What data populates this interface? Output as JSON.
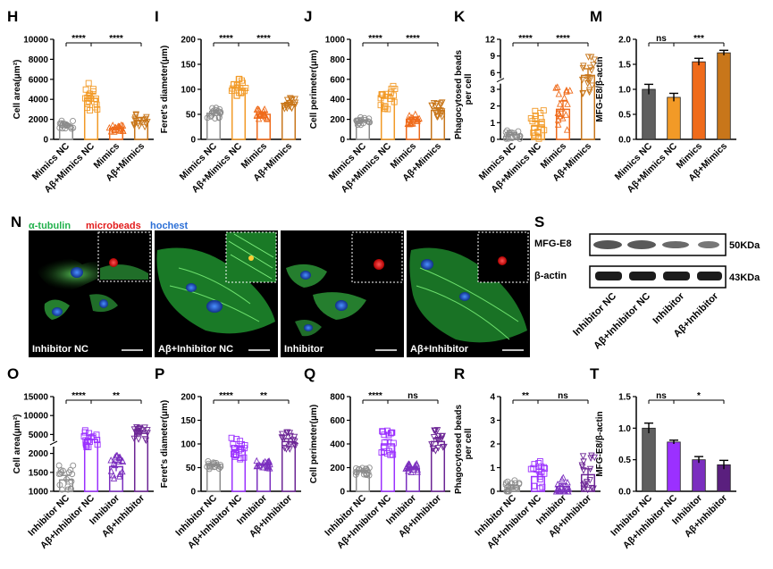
{
  "figure": {
    "microscopy": {
      "letter": "N",
      "stain_labels": [
        {
          "text": "α-tubulin",
          "color": "#22b14c"
        },
        {
          "text": "microbeads",
          "color": "#e21b1b"
        },
        {
          "text": "hochest",
          "color": "#2b6fd6"
        }
      ],
      "panels": [
        {
          "label": "Inhibitor NC"
        },
        {
          "label": "Aβ+Inhibitor  NC"
        },
        {
          "label": "Inhibitor"
        },
        {
          "label": "Aβ+Inhibitor"
        }
      ]
    },
    "western_blot": {
      "letter": "S",
      "bands": [
        {
          "name": "MFG-E8",
          "size": "50KDa"
        },
        {
          "name": "β-actin",
          "size": "43KDa"
        }
      ],
      "lanes": [
        "Inhibitor NC",
        "Aβ+Inhibitor NC",
        "Inhibitor",
        "Aβ+Inhibitor"
      ]
    }
  },
  "chart_data": [
    {
      "letter": "H",
      "type": "bar",
      "ylabel": "Cell area(μm²)",
      "ylim": [
        0,
        10000
      ],
      "yticks": [
        0,
        2000,
        4000,
        6000,
        8000,
        10000
      ],
      "categories": [
        "Mimics NC",
        "Aβ+Mimics NC",
        "Mimics",
        "Aβ+Mimics"
      ],
      "values": [
        1400,
        4100,
        1100,
        1900
      ],
      "errors": [
        150,
        500,
        120,
        250
      ],
      "colors": [
        "#8c8c8c",
        "#f29a27",
        "#ef6b1b",
        "#c8761a"
      ],
      "markers": [
        "circle",
        "square",
        "triangle",
        "triangle-down"
      ],
      "annotations": [
        {
          "from": 0,
          "to": 1,
          "text": "****"
        },
        {
          "from": 1,
          "to": 3,
          "text": "****"
        }
      ]
    },
    {
      "letter": "I",
      "type": "bar",
      "ylabel": "Feret's diameter(μm)",
      "ylim": [
        0,
        200
      ],
      "yticks": [
        0,
        50,
        100,
        150,
        200
      ],
      "categories": [
        "Mimics NC",
        "Aβ+Mimics NC",
        "Mimics",
        "Aβ+Mimics"
      ],
      "values": [
        52,
        102,
        50,
        70
      ],
      "errors": [
        4,
        6,
        4,
        4
      ],
      "colors": [
        "#8c8c8c",
        "#f29a27",
        "#ef6b1b",
        "#c8761a"
      ],
      "markers": [
        "circle",
        "square",
        "triangle",
        "triangle-down"
      ],
      "annotations": [
        {
          "from": 0,
          "to": 1,
          "text": "****"
        },
        {
          "from": 1,
          "to": 3,
          "text": "****"
        }
      ]
    },
    {
      "letter": "J",
      "type": "bar",
      "ylabel": "Cell perimeter(μm)",
      "ylim": [
        0,
        1000
      ],
      "yticks": [
        0,
        200,
        400,
        600,
        800,
        1000
      ],
      "categories": [
        "Mimics NC",
        "Aβ+Mimics NC",
        "Mimics",
        "Aβ+Mimics"
      ],
      "values": [
        180,
        410,
        200,
        290
      ],
      "errors": [
        15,
        40,
        20,
        25
      ],
      "colors": [
        "#8c8c8c",
        "#f29a27",
        "#ef6b1b",
        "#c8761a"
      ],
      "markers": [
        "circle",
        "square",
        "triangle",
        "triangle-down"
      ],
      "annotations": [
        {
          "from": 0,
          "to": 1,
          "text": "****"
        },
        {
          "from": 1,
          "to": 3,
          "text": "****"
        }
      ]
    },
    {
      "letter": "K",
      "type": "bar",
      "ylabel": "Phagocytosed beads per cell",
      "ylim": [
        0,
        14
      ],
      "yticks": [
        0,
        1,
        2,
        3,
        6,
        9,
        12
      ],
      "axis_break": "3 to 4",
      "categories": [
        "Mimics NC",
        "Aβ+Mimics NC",
        "Mimics",
        "Aβ+Mimics"
      ],
      "values": [
        0.3,
        0.8,
        1.8,
        5.5
      ],
      "errors": [
        0.1,
        0.3,
        0.5,
        1.2
      ],
      "colors": [
        "#8c8c8c",
        "#f29a27",
        "#ef6b1b",
        "#c8761a"
      ],
      "markers": [
        "circle",
        "square",
        "triangle",
        "triangle-down"
      ],
      "annotations": [
        {
          "from": 0,
          "to": 1,
          "text": "****"
        },
        {
          "from": 1,
          "to": 3,
          "text": "****"
        }
      ]
    },
    {
      "letter": "M",
      "type": "bar",
      "ylabel": "MFG-E8/β-actin",
      "ylim": [
        0,
        2.0
      ],
      "yticks": [
        "0.0",
        "0.5",
        "1.0",
        "1.5",
        "2.0"
      ],
      "categories": [
        "Mimics NC",
        "Aβ+Mimics NC",
        "Mimics",
        "Aβ+Mimics"
      ],
      "values": [
        1.0,
        0.84,
        1.55,
        1.73
      ],
      "errors": [
        0.1,
        0.08,
        0.07,
        0.05
      ],
      "colors": [
        "#5f5f5f",
        "#f29a27",
        "#ef6b1b",
        "#c8761a"
      ],
      "solid": true,
      "annotations": [
        {
          "from": 0,
          "to": 1,
          "text": "ns"
        },
        {
          "from": 1,
          "to": 3,
          "text": "***"
        }
      ]
    },
    {
      "letter": "O",
      "type": "bar",
      "ylabel": "Cell area(μm²)",
      "ylim": [
        1000,
        15000
      ],
      "yticks": [
        1000,
        1500,
        2000,
        5000,
        10000,
        15000
      ],
      "axis_break": "2000 to 2500",
      "categories": [
        "Inhibitor NC",
        "Aβ+Inhibitor NC",
        "Inhibitor",
        "Aβ+Inhibitor"
      ],
      "values": [
        1300,
        4200,
        1650,
        5300
      ],
      "errors": [
        120,
        600,
        120,
        500
      ],
      "colors": [
        "#8c8c8c",
        "#9b30ff",
        "#7b2fbf",
        "#6b2494"
      ],
      "markers": [
        "circle",
        "square",
        "triangle",
        "triangle-down"
      ],
      "annotations": [
        {
          "from": 0,
          "to": 1,
          "text": "****"
        },
        {
          "from": 1,
          "to": 3,
          "text": "**"
        }
      ]
    },
    {
      "letter": "P",
      "type": "bar",
      "ylabel": "Feret's diameter(μm)",
      "ylim": [
        0,
        200
      ],
      "yticks": [
        0,
        50,
        100,
        150,
        200
      ],
      "categories": [
        "Inhibitor NC",
        "Aβ+Inhibitor NC",
        "Inhibitor",
        "Aβ+Inhibitor"
      ],
      "values": [
        55,
        88,
        55,
        105
      ],
      "errors": [
        3,
        8,
        3,
        6
      ],
      "colors": [
        "#8c8c8c",
        "#9b30ff",
        "#7b2fbf",
        "#6b2494"
      ],
      "markers": [
        "circle",
        "square",
        "triangle",
        "triangle-down"
      ],
      "annotations": [
        {
          "from": 0,
          "to": 1,
          "text": "****"
        },
        {
          "from": 1,
          "to": 3,
          "text": "**"
        }
      ]
    },
    {
      "letter": "Q",
      "type": "bar",
      "ylabel": "Cell perimeter(μm)",
      "ylim": [
        0,
        800
      ],
      "yticks": [
        0,
        200,
        400,
        600,
        800
      ],
      "categories": [
        "Inhibitor NC",
        "Aβ+Inhibitor NC",
        "Inhibitor",
        "Aβ+Inhibitor"
      ],
      "values": [
        165,
        400,
        190,
        420
      ],
      "errors": [
        12,
        35,
        15,
        30
      ],
      "colors": [
        "#8c8c8c",
        "#9b30ff",
        "#7b2fbf",
        "#6b2494"
      ],
      "markers": [
        "circle",
        "square",
        "triangle",
        "triangle-down"
      ],
      "annotations": [
        {
          "from": 0,
          "to": 1,
          "text": "****"
        },
        {
          "from": 1,
          "to": 3,
          "text": "ns"
        }
      ]
    },
    {
      "letter": "R",
      "type": "bar",
      "ylabel": "Phagocytosed beads per cell",
      "ylim": [
        0,
        4
      ],
      "yticks": [
        0,
        1,
        2,
        3,
        4
      ],
      "categories": [
        "Inhibitor NC",
        "Aβ+Inhibitor NC",
        "Inhibitor",
        "Aβ+Inhibitor"
      ],
      "values": [
        0.15,
        0.62,
        0.2,
        0.7
      ],
      "errors": [
        0.1,
        0.2,
        0.12,
        0.25
      ],
      "colors": [
        "#8c8c8c",
        "#9b30ff",
        "#7b2fbf",
        "#6b2494"
      ],
      "markers": [
        "circle",
        "square",
        "triangle",
        "triangle-down"
      ],
      "annotations": [
        {
          "from": 0,
          "to": 1,
          "text": "**"
        },
        {
          "from": 1,
          "to": 3,
          "text": "ns"
        }
      ]
    },
    {
      "letter": "T",
      "type": "bar",
      "ylabel": "MFG-E8/β-actin",
      "ylim": [
        0,
        1.5
      ],
      "yticks": [
        "0.0",
        "0.5",
        "1.0",
        "1.5"
      ],
      "categories": [
        "Inhibitor NC",
        "Aβ+Inhibitor NC",
        "Inhibitor",
        "Aβ+Inhibitor"
      ],
      "values": [
        1.0,
        0.78,
        0.5,
        0.42
      ],
      "errors": [
        0.08,
        0.03,
        0.05,
        0.07
      ],
      "colors": [
        "#5f5f5f",
        "#9b30ff",
        "#7b2fbf",
        "#5a1f7e"
      ],
      "solid": true,
      "annotations": [
        {
          "from": 0,
          "to": 1,
          "text": "ns"
        },
        {
          "from": 1,
          "to": 3,
          "text": "*"
        }
      ]
    }
  ]
}
